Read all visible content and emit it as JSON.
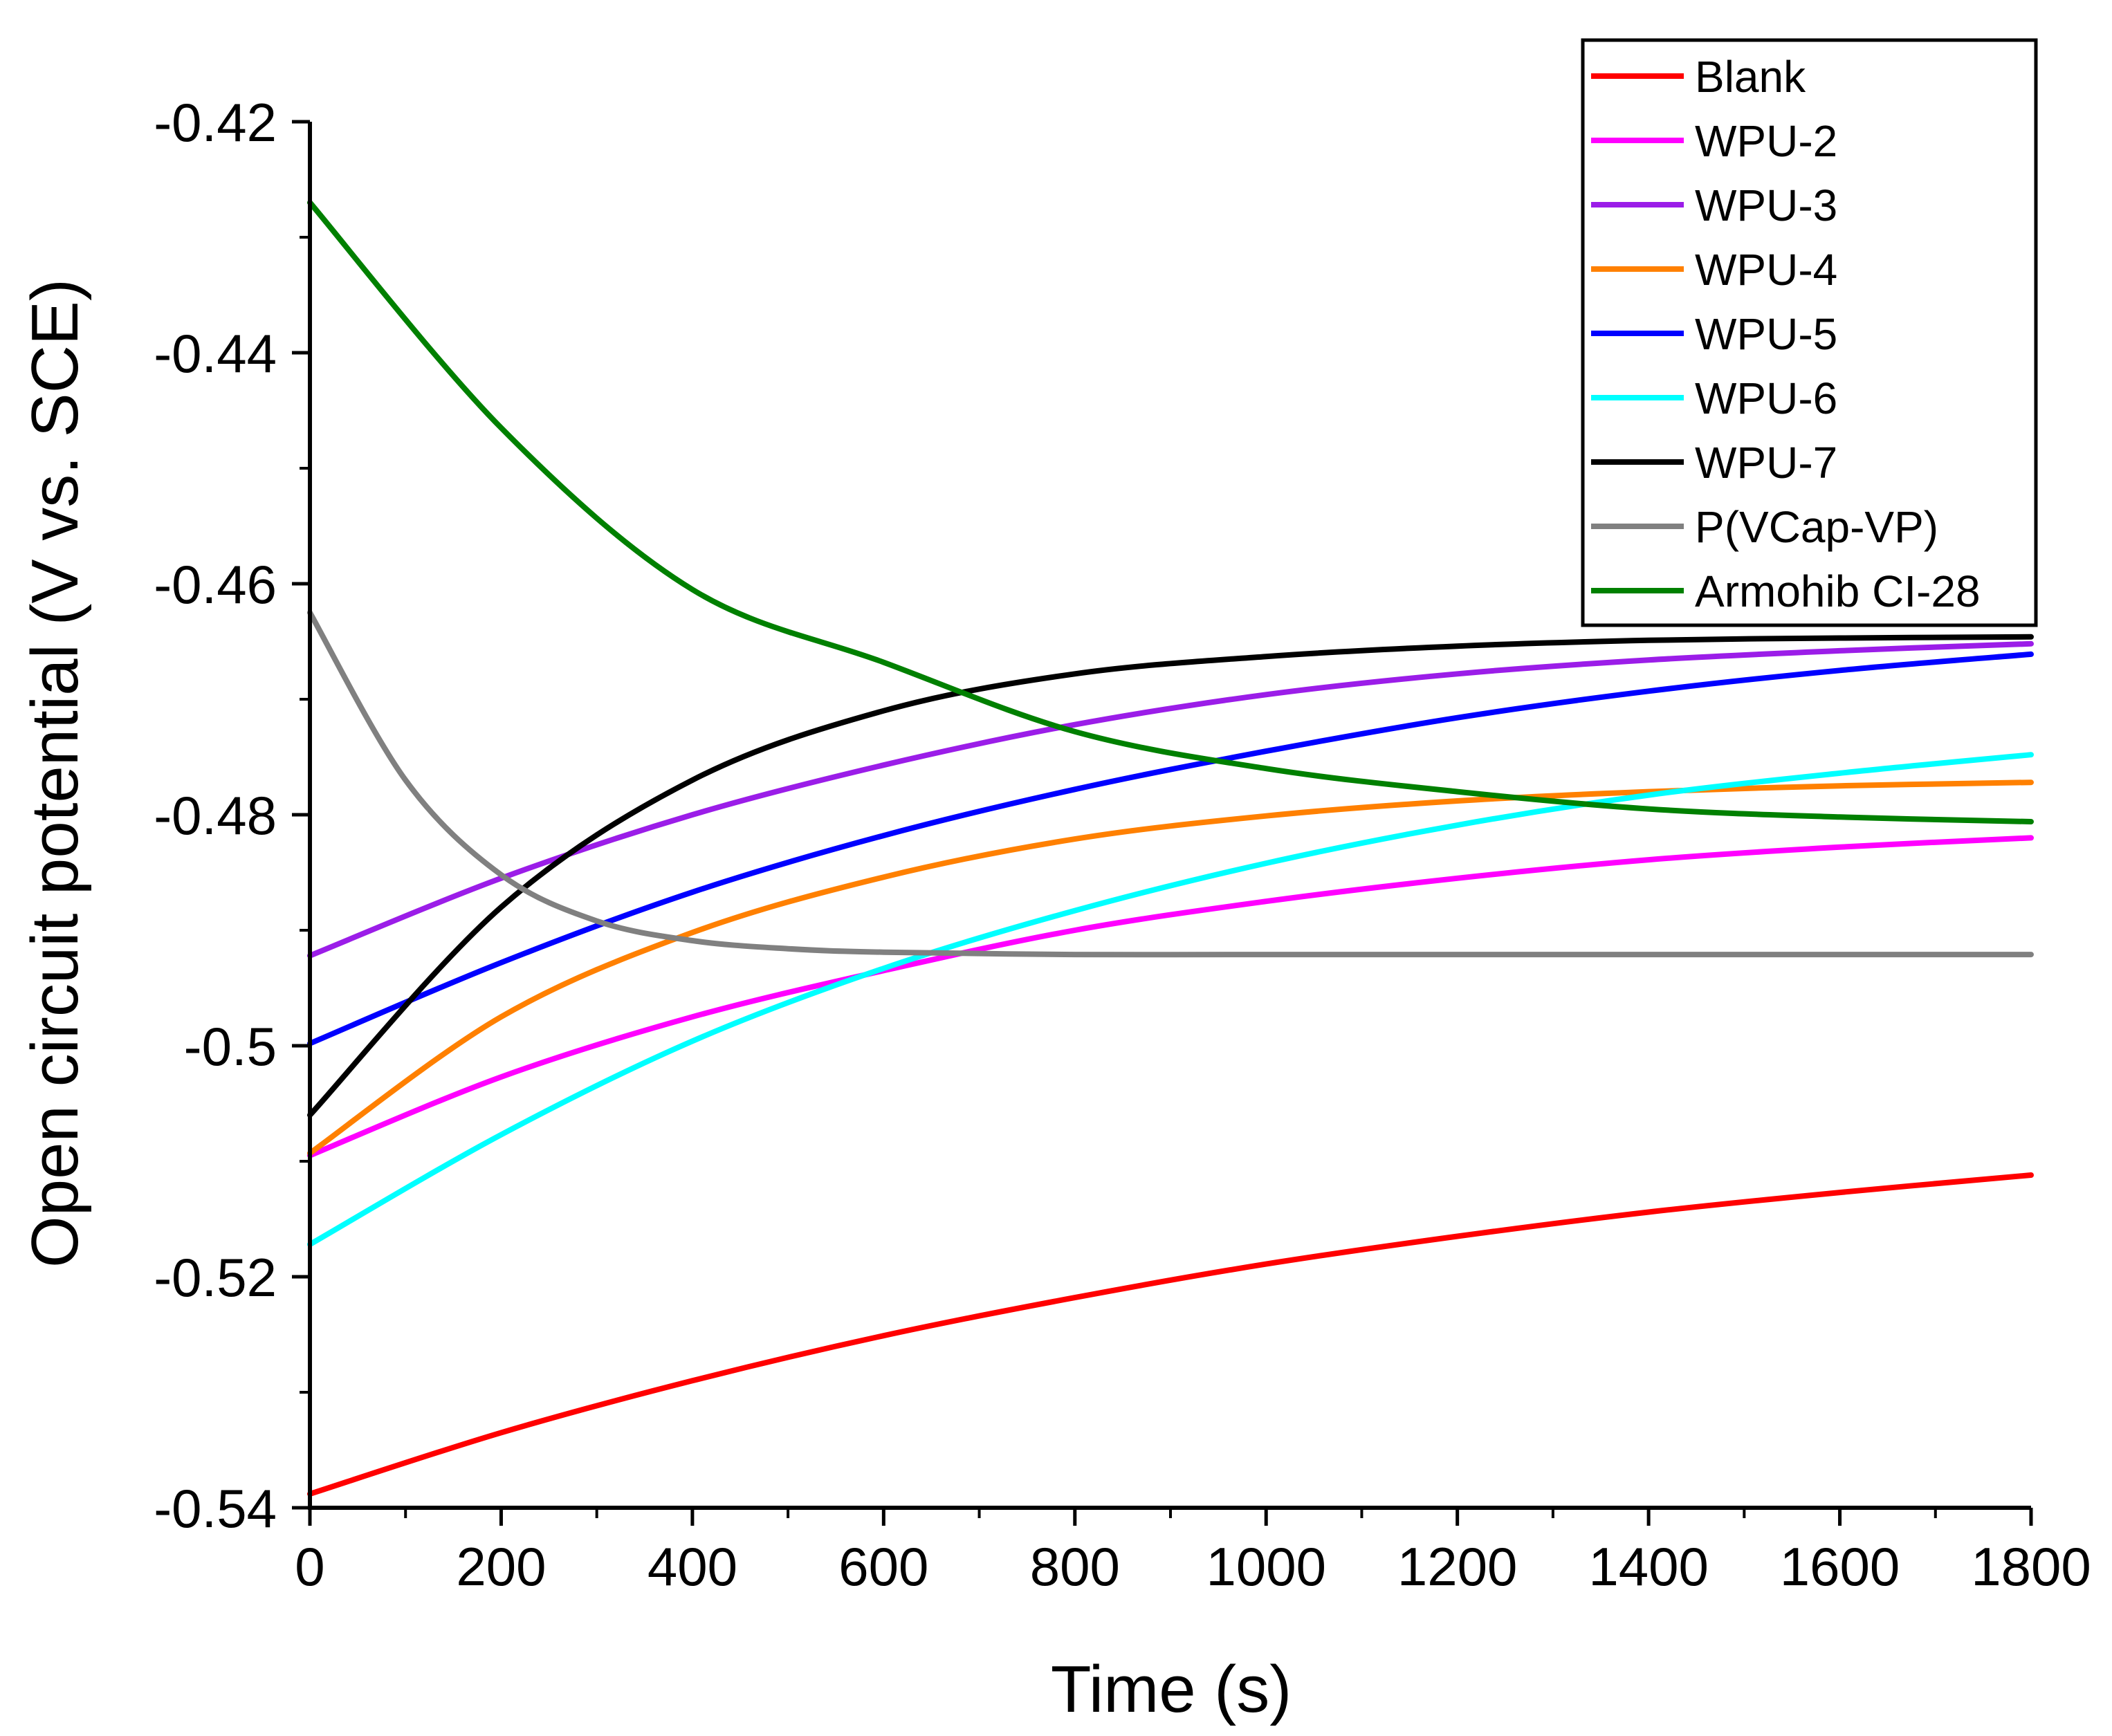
{
  "chart_data": {
    "type": "line",
    "title": "",
    "xlabel": "Time (s)",
    "ylabel": "Open circuit potential (V vs. SCE)",
    "xlim": [
      0,
      1800
    ],
    "ylim": [
      -0.54,
      -0.42
    ],
    "x_ticks": [
      0,
      200,
      400,
      600,
      800,
      1000,
      1200,
      1400,
      1600,
      1800
    ],
    "x_tick_labels": [
      "0",
      "200",
      "400",
      "600",
      "800",
      "1000",
      "1200",
      "1400",
      "1600",
      "1800"
    ],
    "y_ticks": [
      -0.54,
      -0.52,
      -0.5,
      -0.48,
      -0.46,
      -0.44,
      -0.42
    ],
    "y_tick_labels": [
      "-0.54",
      "-0.52",
      "-0.5",
      "-0.48",
      "-0.46",
      "-0.44",
      "-0.42"
    ],
    "legend_position": "top-right",
    "grid": false,
    "series": [
      {
        "name": "Blank",
        "color": "#ff0000",
        "x": [
          0,
          200,
          400,
          600,
          800,
          1000,
          1200,
          1400,
          1600,
          1800
        ],
        "values": [
          -0.5388,
          -0.5335,
          -0.529,
          -0.5251,
          -0.5218,
          -0.5189,
          -0.5165,
          -0.5144,
          -0.5127,
          -0.5112
        ]
      },
      {
        "name": "WPU-2",
        "color": "#ff00ff",
        "x": [
          0,
          200,
          400,
          600,
          800,
          1000,
          1200,
          1400,
          1600,
          1800
        ],
        "values": [
          -0.5095,
          -0.5027,
          -0.4975,
          -0.4935,
          -0.49,
          -0.4875,
          -0.4855,
          -0.4839,
          -0.4828,
          -0.482
        ]
      },
      {
        "name": "WPU-3",
        "color": "#9b1de8",
        "x": [
          0,
          200,
          400,
          600,
          800,
          1000,
          1200,
          1400,
          1600,
          1800
        ],
        "values": [
          -0.4922,
          -0.4855,
          -0.48,
          -0.4757,
          -0.4722,
          -0.4696,
          -0.4678,
          -0.4666,
          -0.4658,
          -0.4652
        ]
      },
      {
        "name": "WPU-4",
        "color": "#ff8000",
        "x": [
          0,
          200,
          400,
          600,
          800,
          1000,
          1200,
          1400,
          1600,
          1800
        ],
        "values": [
          -0.5093,
          -0.4975,
          -0.4902,
          -0.4854,
          -0.4821,
          -0.4801,
          -0.4788,
          -0.478,
          -0.4775,
          -0.4772
        ]
      },
      {
        "name": "WPU-5",
        "color": "#0000ff",
        "x": [
          0,
          200,
          400,
          600,
          800,
          1000,
          1200,
          1400,
          1600,
          1800
        ],
        "values": [
          -0.4998,
          -0.4928,
          -0.4867,
          -0.4818,
          -0.4778,
          -0.4745,
          -0.4716,
          -0.4693,
          -0.4675,
          -0.4661
        ]
      },
      {
        "name": "WPU-6",
        "color": "#00ffff",
        "x": [
          0,
          200,
          400,
          600,
          800,
          1000,
          1200,
          1400,
          1600,
          1800
        ],
        "values": [
          -0.5172,
          -0.5077,
          -0.4996,
          -0.4933,
          -0.4883,
          -0.4842,
          -0.4809,
          -0.4783,
          -0.4764,
          -0.4748
        ]
      },
      {
        "name": "WPU-7",
        "color": "#000000",
        "x": [
          0,
          200,
          400,
          600,
          800,
          1000,
          1200,
          1400,
          1600,
          1800
        ],
        "values": [
          -0.506,
          -0.488,
          -0.477,
          -0.471,
          -0.4678,
          -0.4663,
          -0.4654,
          -0.4649,
          -0.4647,
          -0.4646
        ]
      },
      {
        "name": "P(VCap-VP)",
        "color": "#808080",
        "x": [
          0,
          100,
          200,
          300,
          400,
          500,
          600,
          800,
          1000,
          1200,
          1400,
          1600,
          1800
        ],
        "values": [
          -0.4625,
          -0.477,
          -0.4852,
          -0.4892,
          -0.4909,
          -0.4916,
          -0.4919,
          -0.4921,
          -0.4921,
          -0.4921,
          -0.4921,
          -0.4921,
          -0.4921
        ]
      },
      {
        "name": "Armohib CI-28",
        "color": "#008000",
        "x": [
          0,
          200,
          400,
          600,
          800,
          1000,
          1200,
          1400,
          1600,
          1800
        ],
        "values": [
          -0.427,
          -0.4465,
          -0.4605,
          -0.4668,
          -0.4728,
          -0.476,
          -0.478,
          -0.4795,
          -0.4802,
          -0.4806
        ]
      }
    ]
  }
}
